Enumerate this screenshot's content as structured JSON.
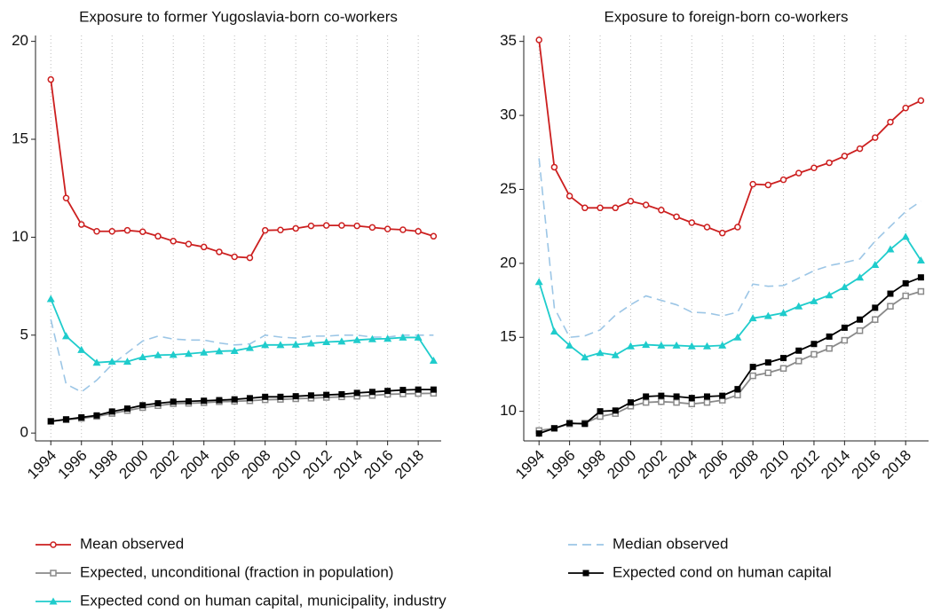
{
  "chart_data": [
    {
      "type": "line",
      "title": "Exposure to former Yugoslavia-born co-workers",
      "x": [
        1994,
        1995,
        1996,
        1997,
        1998,
        1999,
        2000,
        2001,
        2002,
        2003,
        2004,
        2005,
        2006,
        2007,
        2008,
        2009,
        2010,
        2011,
        2012,
        2013,
        2014,
        2015,
        2016,
        2017,
        2018,
        2019
      ],
      "xlim": [
        1993,
        2019.5
      ],
      "xticks": [
        1994,
        1996,
        1998,
        2000,
        2002,
        2004,
        2006,
        2008,
        2010,
        2012,
        2014,
        2016,
        2018
      ],
      "ylim": [
        -0.4,
        20.3
      ],
      "yticks": [
        0,
        5,
        10,
        15,
        20
      ],
      "grid": "x",
      "series": [
        {
          "name": "Mean observed",
          "color": "#cc1f1f",
          "marker": "circle-open",
          "values": [
            18.05,
            12.0,
            10.65,
            10.3,
            10.3,
            10.35,
            10.28,
            10.05,
            9.8,
            9.65,
            9.5,
            9.25,
            9.0,
            8.95,
            10.35,
            10.37,
            10.45,
            10.58,
            10.6,
            10.6,
            10.58,
            10.5,
            10.42,
            10.38,
            10.3,
            10.05
          ]
        },
        {
          "name": "Median observed",
          "color": "#9cc6e6",
          "marker": "none",
          "dash": true,
          "values": [
            5.8,
            2.5,
            2.1,
            2.7,
            3.5,
            4.1,
            4.7,
            4.95,
            4.8,
            4.75,
            4.75,
            4.6,
            4.5,
            4.55,
            5.0,
            4.9,
            4.85,
            4.95,
            4.95,
            5.0,
            5.0,
            4.9,
            4.9,
            5.0,
            5.0,
            5.0
          ]
        },
        {
          "name": "Expected, unconditional (fraction in population)",
          "color": "#8a8a8a",
          "marker": "square-open",
          "values": [
            0.6,
            0.68,
            0.75,
            0.85,
            1.0,
            1.15,
            1.3,
            1.4,
            1.5,
            1.52,
            1.55,
            1.6,
            1.62,
            1.65,
            1.7,
            1.72,
            1.75,
            1.78,
            1.82,
            1.85,
            1.88,
            1.92,
            1.98,
            2.0,
            2.02,
            2.03
          ]
        },
        {
          "name": "Expected cond on human capital",
          "color": "#000000",
          "marker": "square",
          "values": [
            0.6,
            0.7,
            0.8,
            0.9,
            1.1,
            1.25,
            1.42,
            1.52,
            1.6,
            1.62,
            1.65,
            1.68,
            1.72,
            1.78,
            1.85,
            1.85,
            1.88,
            1.92,
            1.95,
            1.98,
            2.05,
            2.1,
            2.15,
            2.2,
            2.22,
            2.22
          ]
        },
        {
          "name": "Expected cond on human capital, municipality, industry",
          "color": "#1fcccc",
          "marker": "triangle",
          "values": [
            6.85,
            4.95,
            4.25,
            3.6,
            3.65,
            3.65,
            3.88,
            3.98,
            4.0,
            4.05,
            4.12,
            4.18,
            4.2,
            4.35,
            4.5,
            4.5,
            4.52,
            4.58,
            4.65,
            4.68,
            4.75,
            4.8,
            4.82,
            4.88,
            4.88,
            3.7
          ]
        }
      ]
    },
    {
      "type": "line",
      "title": "Exposure to foreign-born co-workers",
      "x": [
        1994,
        1995,
        1996,
        1997,
        1998,
        1999,
        2000,
        2001,
        2002,
        2003,
        2004,
        2005,
        2006,
        2007,
        2008,
        2009,
        2010,
        2011,
        2012,
        2013,
        2014,
        2015,
        2016,
        2017,
        2018,
        2019
      ],
      "xlim": [
        1993,
        2019.5
      ],
      "xticks": [
        1994,
        1996,
        1998,
        2000,
        2002,
        2004,
        2006,
        2008,
        2010,
        2012,
        2014,
        2016,
        2018
      ],
      "ylim": [
        8,
        35.4
      ],
      "yticks": [
        10,
        15,
        20,
        25,
        30,
        35
      ],
      "grid": "x",
      "series": [
        {
          "name": "Mean observed",
          "color": "#cc1f1f",
          "marker": "circle-open",
          "values": [
            35.1,
            26.5,
            24.55,
            23.75,
            23.75,
            23.75,
            24.2,
            23.95,
            23.6,
            23.15,
            22.75,
            22.45,
            22.05,
            22.45,
            25.35,
            25.3,
            25.65,
            26.1,
            26.45,
            26.8,
            27.25,
            27.75,
            28.5,
            29.55,
            30.5,
            31.0
          ]
        },
        {
          "name": "Median observed",
          "color": "#9cc6e6",
          "marker": "none",
          "dash": true,
          "values": [
            27.1,
            17.0,
            15.0,
            15.1,
            15.5,
            16.5,
            17.2,
            17.8,
            17.5,
            17.2,
            16.7,
            16.65,
            16.45,
            16.7,
            18.6,
            18.45,
            18.5,
            19.0,
            19.5,
            19.85,
            20.05,
            20.3,
            21.5,
            22.5,
            23.5,
            24.2
          ]
        },
        {
          "name": "Expected, unconditional (fraction in population)",
          "color": "#8a8a8a",
          "marker": "square-open",
          "values": [
            8.7,
            8.85,
            9.15,
            9.2,
            9.65,
            9.85,
            10.35,
            10.6,
            10.65,
            10.6,
            10.5,
            10.6,
            10.75,
            11.1,
            12.4,
            12.6,
            12.9,
            13.4,
            13.85,
            14.25,
            14.8,
            15.45,
            16.2,
            17.1,
            17.8,
            18.1
          ]
        },
        {
          "name": "Expected cond on human capital",
          "color": "#000000",
          "marker": "square",
          "values": [
            8.5,
            8.85,
            9.2,
            9.15,
            10.0,
            10.05,
            10.6,
            11.0,
            11.05,
            11.0,
            10.9,
            11.0,
            11.05,
            11.5,
            13.0,
            13.3,
            13.6,
            14.1,
            14.55,
            15.05,
            15.65,
            16.2,
            17.0,
            17.95,
            18.65,
            19.05
          ]
        },
        {
          "name": "Expected cond on human capital, municipality, industry",
          "color": "#1fcccc",
          "marker": "triangle",
          "values": [
            18.75,
            15.4,
            14.45,
            13.65,
            13.95,
            13.8,
            14.4,
            14.5,
            14.45,
            14.45,
            14.4,
            14.4,
            14.45,
            15.0,
            16.3,
            16.45,
            16.65,
            17.1,
            17.45,
            17.85,
            18.4,
            19.05,
            19.9,
            20.95,
            21.8,
            20.2
          ]
        }
      ]
    }
  ]
}
